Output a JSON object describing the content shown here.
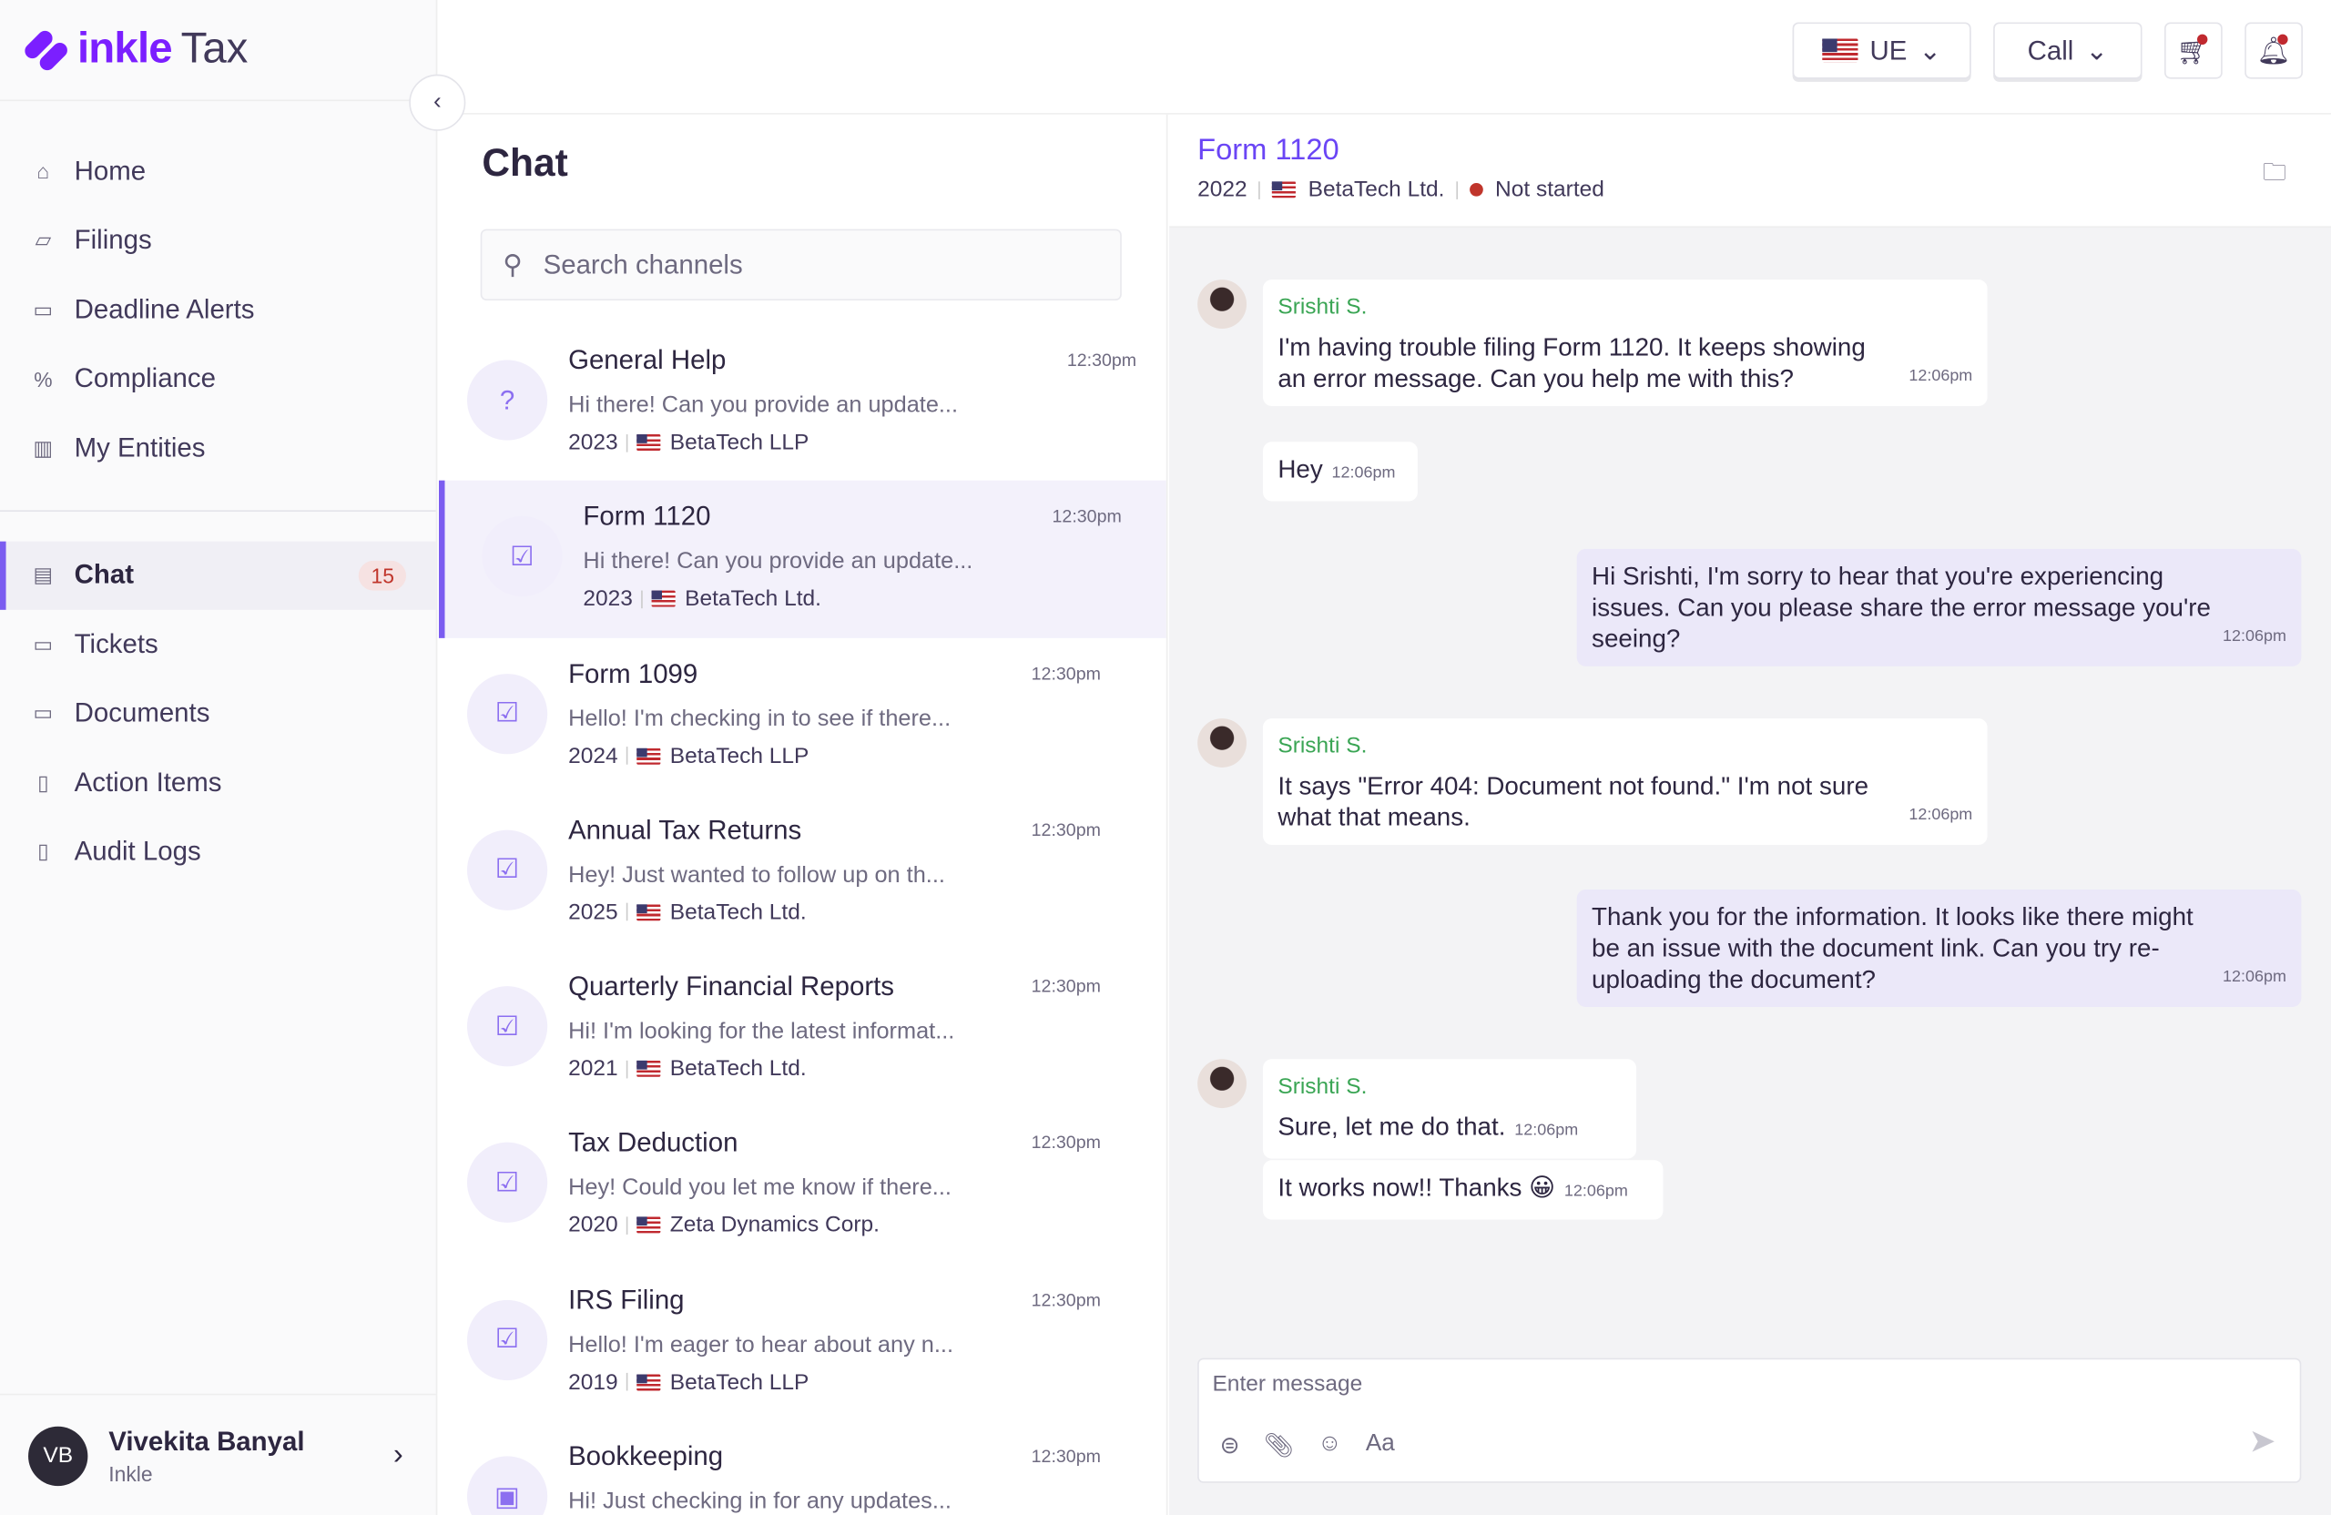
{
  "brand": {
    "name": "inkle",
    "suffix": "Tax",
    "color": "#7b1fff"
  },
  "sidebar": {
    "items": [
      {
        "label": "Home",
        "icon": "home-icon",
        "glyph": "⌂"
      },
      {
        "label": "Filings",
        "icon": "filings-icon",
        "glyph": "▱"
      },
      {
        "label": "Deadline Alerts",
        "icon": "calendar-icon",
        "glyph": "▭"
      },
      {
        "label": "Compliance",
        "icon": "percent-icon",
        "glyph": "%"
      },
      {
        "label": "My Entities",
        "icon": "building-icon",
        "glyph": "▥"
      }
    ],
    "items2": [
      {
        "label": "Chat",
        "icon": "chat-icon",
        "glyph": "▤",
        "badge": "15",
        "active": true
      },
      {
        "label": "Tickets",
        "icon": "ticket-icon",
        "glyph": "▭"
      },
      {
        "label": "Documents",
        "icon": "folder-icon",
        "glyph": "▭"
      },
      {
        "label": "Action Items",
        "icon": "clipboard-icon",
        "glyph": "▯"
      },
      {
        "label": "Audit Logs",
        "icon": "audit-icon",
        "glyph": "▯"
      }
    ],
    "user": {
      "initials": "VB",
      "name": "Vivekita Banyal",
      "org": "Inkle"
    }
  },
  "topbar": {
    "entity": "UE",
    "call": "Call"
  },
  "chat_list": {
    "title": "Chat",
    "search_placeholder": "Search channels",
    "channels": [
      {
        "title": "General Help",
        "preview": "Hi there! Can you provide an update...",
        "year": "2023",
        "entity": "BetaTech LLP",
        "time": "12:30pm",
        "icon": "help-icon",
        "glyph": "?"
      },
      {
        "title": "Form 1120",
        "preview": "Hi there! Can you provide an update...",
        "year": "2023",
        "entity": "BetaTech Ltd.",
        "time": "12:30pm",
        "icon": "filing-icon",
        "glyph": "☑"
      },
      {
        "title": "Form 1099",
        "preview": "Hello! I'm checking in to see if there...",
        "year": "2024",
        "entity": "BetaTech LLP",
        "time": "12:30pm",
        "icon": "filing-icon",
        "glyph": "☑"
      },
      {
        "title": "Annual Tax Returns",
        "preview": "Hey! Just wanted to follow up on th...",
        "year": "2025",
        "entity": "BetaTech Ltd.",
        "time": "12:30pm",
        "icon": "filing-icon",
        "glyph": "☑"
      },
      {
        "title": "Quarterly Financial Reports",
        "preview": "Hi! I'm looking for the latest informat...",
        "year": "2021",
        "entity": "BetaTech Ltd.",
        "time": "12:30pm",
        "icon": "filing-icon",
        "glyph": "☑"
      },
      {
        "title": "Tax Deduction",
        "preview": "Hey! Could you let me know if there...",
        "year": "2020",
        "entity": "Zeta Dynamics Corp.",
        "time": "12:30pm",
        "icon": "filing-icon",
        "glyph": "☑"
      },
      {
        "title": "IRS Filing",
        "preview": "Hello! I'm eager to hear about any n...",
        "year": "2019",
        "entity": "BetaTech LLP",
        "time": "12:30pm",
        "icon": "filing-icon",
        "glyph": "☑"
      },
      {
        "title": "Bookkeeping",
        "preview": "Hi! Just checking in for any updates...",
        "year": "",
        "entity": "",
        "time": "12:30pm",
        "icon": "bookkeeping-icon",
        "glyph": "▣"
      }
    ]
  },
  "conversation": {
    "title": "Form 1120",
    "year": "2022",
    "entity": "BetaTech Ltd.",
    "status": "Not started",
    "status_color": "#c0352b",
    "messages": [
      {
        "dir": "in",
        "sender": "Srishti S.",
        "text": "I'm having trouble filing Form 1120. It keeps showing an error message. Can you help me with this?",
        "time": "12:06pm"
      },
      {
        "dir": "in",
        "sender": "",
        "text": "Hey",
        "time": "12:06pm"
      },
      {
        "dir": "out",
        "text": "Hi Srishti, I'm sorry to hear that you're experiencing issues. Can you please share the error message you're seeing?",
        "time": "12:06pm"
      },
      {
        "dir": "in",
        "sender": "Srishti S.",
        "text": "It says \"Error 404: Document not found.\" I'm not sure what that means.",
        "time": "12:06pm"
      },
      {
        "dir": "out",
        "text": "Thank you for the information. It looks like there might be an issue with the document link. Can you try re-uploading the document?",
        "time": "12:06pm"
      },
      {
        "dir": "in",
        "sender": "Srishti S.",
        "text": "Sure, let me do that.",
        "time": "12:06pm"
      },
      {
        "dir": "in",
        "sender": "",
        "text": "It works now!! Thanks 😀",
        "time": "12:06pm"
      }
    ],
    "composer_placeholder": "Enter message",
    "format_label": "Aa"
  }
}
